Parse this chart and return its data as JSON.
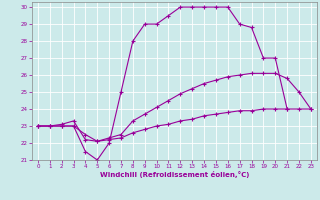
{
  "xlabel": "Windchill (Refroidissement éolien,°C)",
  "bg_color": "#cceaea",
  "grid_color": "#ffffff",
  "line_color": "#990099",
  "xlim": [
    -0.5,
    23.5
  ],
  "ylim": [
    21,
    30.3
  ],
  "xticks": [
    0,
    1,
    2,
    3,
    4,
    5,
    6,
    7,
    8,
    9,
    10,
    11,
    12,
    13,
    14,
    15,
    16,
    17,
    18,
    19,
    20,
    21,
    22,
    23
  ],
  "yticks": [
    21,
    22,
    23,
    24,
    25,
    26,
    27,
    28,
    29,
    30
  ],
  "line1_x": [
    0,
    1,
    2,
    3,
    4,
    5,
    6,
    7,
    8,
    9,
    10,
    11,
    12,
    13,
    14,
    15,
    16,
    17,
    18,
    19,
    20,
    21
  ],
  "line1_y": [
    23,
    23,
    23,
    23,
    21.5,
    21,
    22,
    25,
    28,
    29,
    29,
    29.5,
    30,
    30,
    30,
    30,
    30,
    29,
    28.8,
    27,
    27,
    24
  ],
  "line2_x": [
    0,
    1,
    2,
    3,
    4,
    5,
    6,
    7,
    8,
    9,
    10,
    11,
    12,
    13,
    14,
    15,
    16,
    17,
    18,
    19,
    20,
    21,
    22,
    23
  ],
  "line2_y": [
    23,
    23,
    23.1,
    23.3,
    22.2,
    22.1,
    22.3,
    22.5,
    23.3,
    23.7,
    24.1,
    24.5,
    24.9,
    25.2,
    25.5,
    25.7,
    25.9,
    26.0,
    26.1,
    26.1,
    26.1,
    25.8,
    25.0,
    24.0
  ],
  "line3_x": [
    0,
    1,
    2,
    3,
    4,
    5,
    6,
    7,
    8,
    9,
    10,
    11,
    12,
    13,
    14,
    15,
    16,
    17,
    18,
    19,
    20,
    21,
    22,
    23
  ],
  "line3_y": [
    23,
    23,
    23,
    23,
    22.5,
    22.1,
    22.2,
    22.3,
    22.6,
    22.8,
    23.0,
    23.1,
    23.3,
    23.4,
    23.6,
    23.7,
    23.8,
    23.9,
    23.9,
    24.0,
    24.0,
    24.0,
    24.0,
    24.0
  ]
}
